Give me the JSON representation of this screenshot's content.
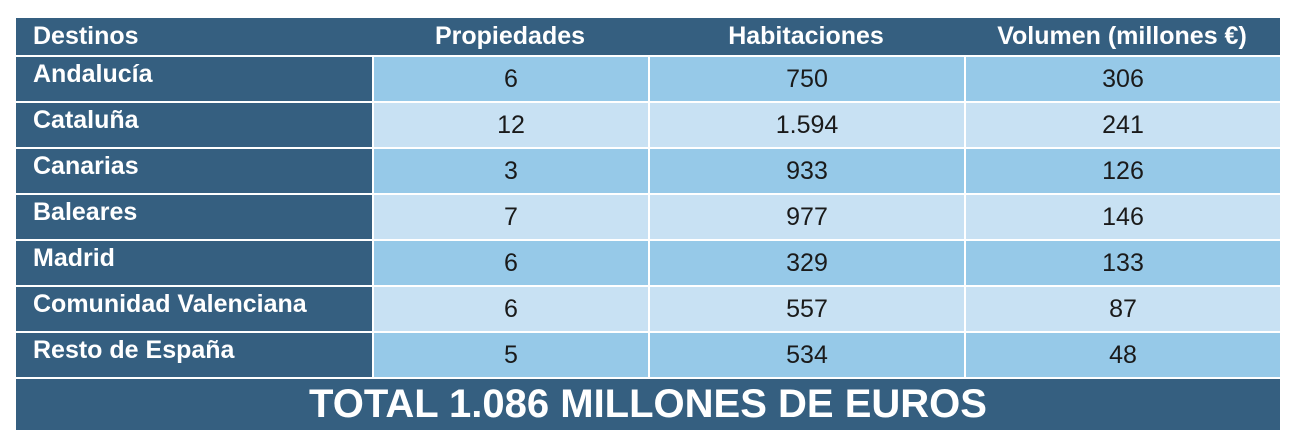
{
  "table": {
    "headers": {
      "destinations": "Destinos",
      "properties": "Propiedades",
      "rooms": "Habitaciones",
      "volume": "Volumen (millones €)"
    },
    "rows": [
      {
        "destination": "Andalucía",
        "properties": "6",
        "rooms": "750",
        "volume": "306"
      },
      {
        "destination": "Cataluña",
        "properties": "12",
        "rooms": "1.594",
        "volume": "241"
      },
      {
        "destination": "Canarias",
        "properties": "3",
        "rooms": "933",
        "volume": "126"
      },
      {
        "destination": "Baleares",
        "properties": "7",
        "rooms": "977",
        "volume": "146"
      },
      {
        "destination": "Madrid",
        "properties": "6",
        "rooms": "329",
        "volume": "133"
      },
      {
        "destination": "Comunidad Valenciana",
        "properties": "6",
        "rooms": "557",
        "volume": "87"
      },
      {
        "destination": "Resto de España",
        "properties": "5",
        "rooms": "534",
        "volume": "48"
      }
    ],
    "total": "TOTAL 1.086 MILLONES DE EUROS"
  },
  "colors": {
    "header_bg": "#355f80",
    "row_light": "#c8e1f3",
    "row_mid": "#96c9e8"
  }
}
